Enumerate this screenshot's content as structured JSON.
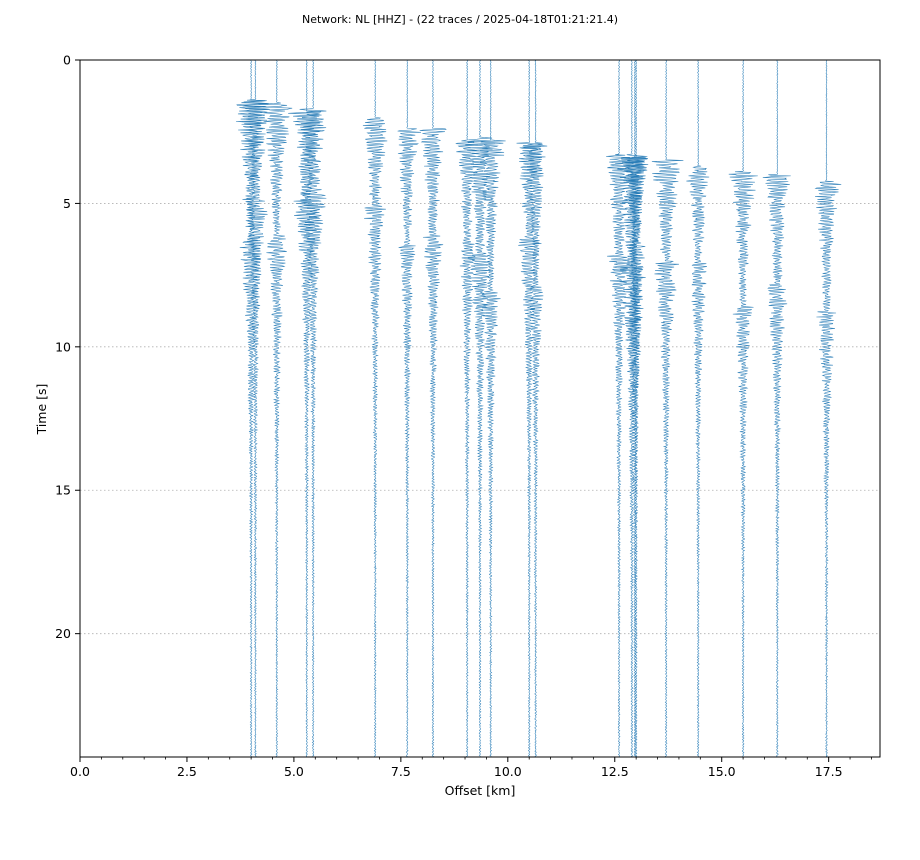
{
  "chart_data": {
    "type": "line",
    "title": "Network: NL [HHZ] - (22 traces / 2025-04-18T01:21:21.4)",
    "xlabel": "Offset [km]",
    "ylabel": "Time [s]",
    "xlim": [
      0,
      18.7
    ],
    "ylim": [
      24.3,
      0
    ],
    "y_inverted": true,
    "x_ticks": [
      0.0,
      2.5,
      5.0,
      7.5,
      10.0,
      12.5,
      15.0,
      17.5
    ],
    "x_tick_labels": [
      "0.0",
      "2.5",
      "5.0",
      "7.5",
      "10.0",
      "12.5",
      "15.0",
      "17.5"
    ],
    "y_ticks": [
      0,
      5,
      10,
      15,
      20
    ],
    "y_tick_labels": [
      "0",
      "5",
      "10",
      "15",
      "20"
    ],
    "grid": "horizontal-dotted",
    "trace_color": "#1f77b4",
    "trace_offsets_km": [
      4.0,
      4.1,
      4.6,
      5.3,
      5.45,
      6.9,
      7.65,
      8.25,
      9.05,
      9.35,
      9.6,
      10.5,
      10.65,
      12.6,
      12.9,
      12.97,
      13.7,
      14.45,
      15.5,
      16.3,
      17.45,
      13.0
    ],
    "trace_onsets_s": [
      1.4,
      1.4,
      1.5,
      1.8,
      1.7,
      2.0,
      2.4,
      2.4,
      2.8,
      2.7,
      2.8,
      2.9,
      2.9,
      3.3,
      3.3,
      3.4,
      3.5,
      3.7,
      3.9,
      4.0,
      4.2,
      3.4
    ],
    "trace_peak_amplitudes_km": [
      0.4,
      0.35,
      0.35,
      0.35,
      0.35,
      0.3,
      0.25,
      0.3,
      0.25,
      0.35,
      0.3,
      0.3,
      0.25,
      0.3,
      0.4,
      0.25,
      0.35,
      0.25,
      0.3,
      0.3,
      0.3,
      0.25
    ]
  }
}
